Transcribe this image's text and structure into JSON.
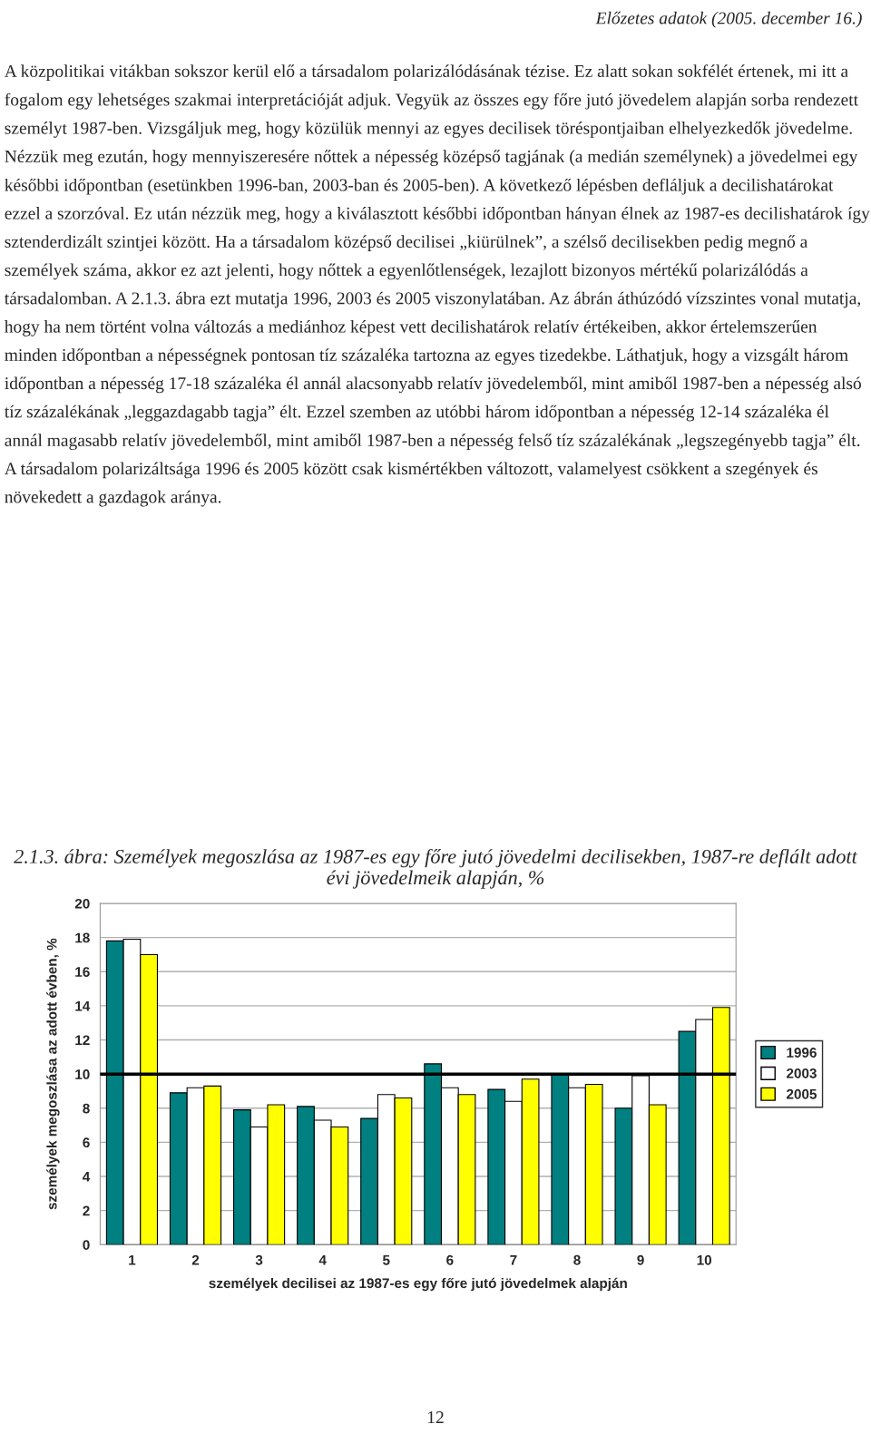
{
  "chart_data": {
    "type": "bar",
    "title": "2.1.3. ábra: Személyek megoszlása az 1987-es egy főre jutó jövedelmi decilisekben, 1987-re deflált adott évi jövedelmeik alapján, %",
    "xlabel": "személyek decilisei az 1987-es egy főre jutó jövedelmek alapján",
    "ylabel": "személyek megoszlása az adott évben, %",
    "categories": [
      "1",
      "2",
      "3",
      "4",
      "5",
      "6",
      "7",
      "8",
      "9",
      "10"
    ],
    "series": [
      {
        "name": "1996",
        "color": "#008080",
        "values": [
          17.8,
          8.9,
          7.9,
          8.1,
          7.4,
          10.6,
          9.1,
          10.0,
          8.0,
          12.5
        ]
      },
      {
        "name": "2003",
        "color": "#ffffff",
        "values": [
          17.9,
          9.2,
          6.9,
          7.3,
          8.8,
          9.2,
          8.4,
          9.2,
          9.9,
          13.2
        ]
      },
      {
        "name": "2005",
        "color": "#ffff00",
        "values": [
          17.0,
          9.3,
          8.2,
          6.9,
          8.6,
          8.8,
          9.7,
          9.4,
          8.2,
          13.9
        ]
      }
    ],
    "ylim": [
      0,
      20
    ],
    "yticks": [
      0,
      2,
      4,
      6,
      8,
      10,
      12,
      14,
      16,
      18,
      20
    ],
    "grid": "y",
    "legend": "right",
    "ref_lines": [
      {
        "axis": "y",
        "value": 10,
        "color": "#000000"
      }
    ],
    "annotations": [
      "Előzetes adatok (2005. december 16.)",
      "A közpolitikai vitákban sokszor kerül elő a társadalom polarizálódásának tézise. Ez alatt sokan sokfélét értenek, mi itt a fogalom egy lehetséges szakmai interpretációját adjuk. Vegyük az összes egy főre jutó jövedelem alapján sorba rendezett személyt 1987-ben. Vizsgáljuk meg, hogy közülük mennyi az egyes decilisek töréspontjaiban elhelyezkedők jövedelme. Nézzük meg ezután, hogy mennyiszeresére nőttek a népesség középső tagjának (a medián személynek) a jövedelmei egy későbbi időpontban (esetünkben 1996-ban, 2003-ban és 2005-ben). A következő lépésben defláljuk a decilishatárokat ezzel a szorzóval. Ez után nézzük meg, hogy a kiválasztott későbbi időpontban hányan élnek az 1987-es decilishatárok így sztenderdizált szintjei között. Ha a társadalom középső decilisei „kiürülnek”, a szélső decilisekben pedig megnő a személyek száma, akkor ez azt jelenti, hogy nőttek a egyenlőtlenségek, lezajlott bizonyos mértékű polarizálódás a társadalomban. A 2.1.3. ábra ezt mutatja 1996, 2003 és 2005 viszonylatában. Az ábrán áthúzódó vízszintes vonal mutatja, hogy ha nem történt volna változás a mediánhoz képest vett decilishatárok relatív értékeiben, akkor értelemszerűen minden időpontban a népességnek pontosan tíz százaléka tartozna az egyes tizedekbe. Láthatjuk, hogy a vizsgált három időpontban a népesség 17-18 százaléka él annál alacsonyabb relatív jövedelemből, mint amiből 1987-ben a népesség alsó tíz százalékának „leggazdagabb tagja” élt. Ezzel szemben az utóbbi három időpontban a népesség 12-14 százaléka él annál magasabb relatív jövedelemből, mint amiből 1987-ben a népesség felső tíz százalékának „legszegényebb tagja” élt. A társadalom polarizáltsága 1996 és 2005 között csak kismértékben változott, valamelyest csökkent a szegények és növekedett a gazdagok aránya.",
      "12"
    ]
  }
}
